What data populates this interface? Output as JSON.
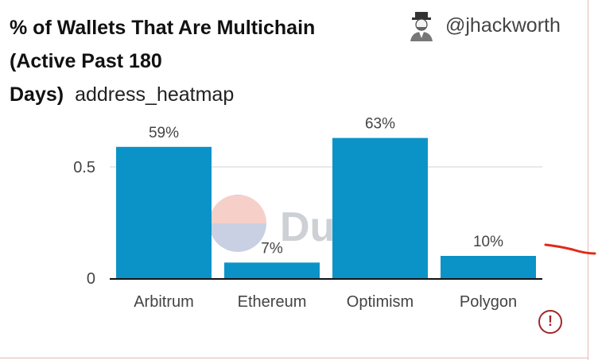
{
  "header": {
    "title": "% of Wallets That Are Multichain (Active Past 180 Days)",
    "query_name": "address_heatmap",
    "author_handle": "@jhackworth"
  },
  "watermark": {
    "text": "Dune"
  },
  "icons": {
    "avatar": "avatar-icon",
    "warning": "exclamation-circle-icon"
  },
  "colors": {
    "bar": "#0b93c8",
    "warning": "#a0272a",
    "annotation": "#e02a16"
  },
  "chart_data": {
    "type": "bar",
    "categories": [
      "Arbitrum",
      "Ethereum",
      "Optimism",
      "Polygon"
    ],
    "values": [
      0.59,
      0.07,
      0.63,
      0.1
    ],
    "data_labels": [
      "59%",
      "7%",
      "63%",
      "10%"
    ],
    "yticks": [
      0,
      0.5
    ],
    "ytick_labels": [
      "0",
      "0.5"
    ],
    "ylim": [
      0,
      0.65
    ],
    "grid": true,
    "legend": "none"
  }
}
